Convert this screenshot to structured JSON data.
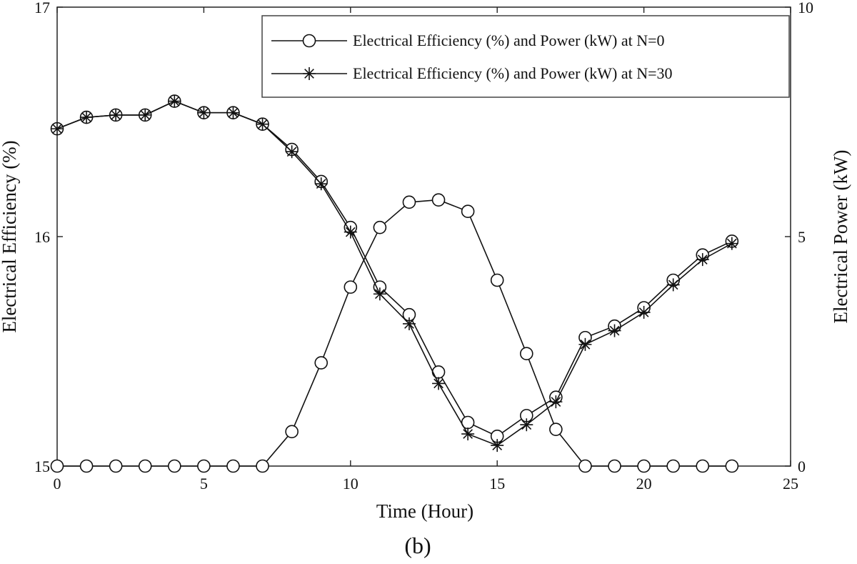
{
  "chart_data": {
    "type": "line",
    "xlabel": "Time (Hour)",
    "ylabel_left": "Electrical Efficiency (%)",
    "ylabel_right": "Electrical Power (kW)",
    "caption": "(b)",
    "xlim": [
      0,
      25
    ],
    "ylim_left": [
      15,
      17
    ],
    "ylim_right": [
      0,
      10
    ],
    "xticks": [
      "0",
      "5",
      "10",
      "15",
      "20",
      "25"
    ],
    "yticks_left": [
      "15",
      "16",
      "17"
    ],
    "yticks_right": [
      "0",
      "5",
      "10"
    ],
    "grid": false,
    "legend_position": "top-right",
    "legend": [
      {
        "label": "Electrical Efficiency (%) and Power (kW) at N=0",
        "marker": "circle"
      },
      {
        "label": "Electrical Efficiency (%) and Power (kW) at N=30",
        "marker": "asterisk"
      }
    ],
    "x": [
      0,
      1,
      2,
      3,
      4,
      5,
      6,
      7,
      8,
      9,
      10,
      11,
      12,
      13,
      14,
      15,
      16,
      17,
      18,
      19,
      20,
      21,
      22,
      23
    ],
    "series": [
      {
        "name": "Electrical Efficiency (%) at N=0",
        "axis": "left",
        "marker": "circle",
        "values": [
          16.47,
          16.52,
          16.53,
          16.53,
          16.59,
          16.54,
          16.54,
          16.49,
          16.38,
          16.24,
          16.04,
          15.78,
          15.66,
          15.41,
          15.19,
          15.13,
          15.22,
          15.3,
          15.56,
          15.61,
          15.69,
          15.81,
          15.92,
          15.98
        ]
      },
      {
        "name": "Electrical Efficiency (%) at N=30",
        "axis": "left",
        "marker": "asterisk",
        "values": [
          16.47,
          16.52,
          16.53,
          16.53,
          16.59,
          16.54,
          16.54,
          16.49,
          16.37,
          16.23,
          16.02,
          15.75,
          15.62,
          15.36,
          15.14,
          15.09,
          15.18,
          15.28,
          15.53,
          15.59,
          15.67,
          15.79,
          15.9,
          15.97
        ]
      },
      {
        "name": "Electrical Power (kW) at N=0",
        "axis": "right",
        "marker": "circle",
        "values": [
          0,
          0,
          0,
          0,
          0,
          0,
          0,
          0,
          0.75,
          2.25,
          3.9,
          5.2,
          5.75,
          5.8,
          5.55,
          4.05,
          2.45,
          0.8,
          0,
          0,
          0,
          0,
          0,
          0
        ]
      }
    ]
  }
}
